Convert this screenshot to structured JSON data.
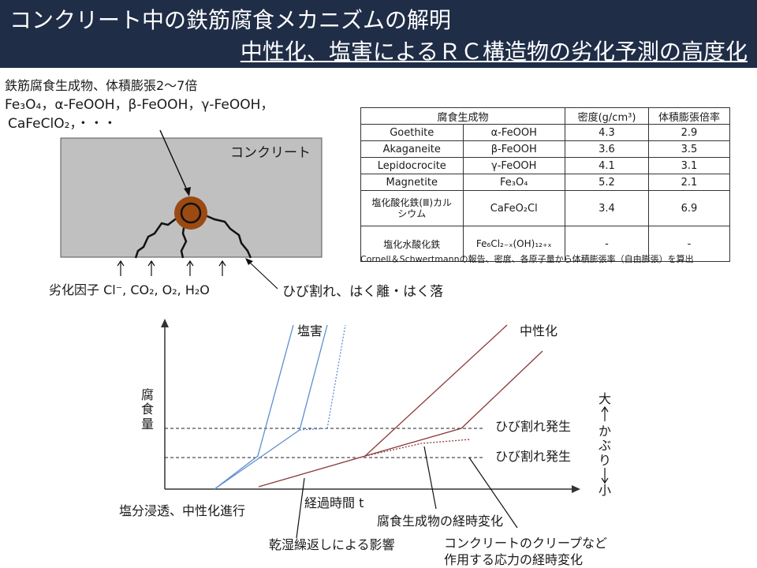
{
  "title": {
    "line1": "コンクリート中の鉄筋腐食メカニズムの解明",
    "line2": "中性化、塩害によるＲＣ構造物の劣化予測の高度化"
  },
  "diagram": {
    "products_line1": "鉄筋腐食生成物、体積膨張2～7倍",
    "products_line2": "Fe₃O₄，α-FeOOH，β-FeOOH，γ-FeOOH，",
    "products_line3": "CaFeClO₂，・・・",
    "concrete_label": "コンクリート",
    "factors_label": "劣化因子 Cl⁻, CO₂, O₂, H₂O",
    "crack_label": "ひび割れ、はく離・はく落"
  },
  "table": {
    "headers": [
      "腐食生成物",
      "密度(g/cm³)",
      "体積膨張倍率"
    ],
    "rows": [
      {
        "name": "Goethite",
        "formula": "α-FeOOH",
        "density": "4.3",
        "expansion": "2.9"
      },
      {
        "name": "Akaganeite",
        "formula": "β-FeOOH",
        "density": "3.6",
        "expansion": "3.5"
      },
      {
        "name": "Lepidocrocite",
        "formula": "γ-FeOOH",
        "density": "4.1",
        "expansion": "3.1"
      },
      {
        "name": "Magnetite",
        "formula": "Fe₃O₄",
        "density": "5.2",
        "expansion": "2.1"
      },
      {
        "name": "塩化酸化鉄(Ⅲ)カルシウム",
        "formula": "CaFeO₂Cl",
        "density": "3.4",
        "expansion": "6.9"
      },
      {
        "name": "塩化水酸化鉄",
        "formula": "Fe₆Cl₂₋ₓ(OH)₁₂₊ₓ",
        "density": "-",
        "expansion": "-"
      }
    ],
    "note": "Cornell＆Schwertmannの報告、密度、各原子量から体積膨張率（自由膨張）を算出"
  },
  "graph": {
    "y_label": "腐食量",
    "x_label": "経過時間 t",
    "salt_label": "塩害",
    "carbonation_label": "中性化",
    "crack_upper": "ひび割れ発生",
    "crack_lower": "ひび割れ発生",
    "cover_large": "大",
    "cover_text": "かぶり",
    "cover_small": "小",
    "initiation_label": "塩分浸透、中性化進行",
    "product_change": "腐食生成物の経時変化",
    "wetdry_label": "乾湿繰返しによる影響",
    "creep_line1": "コンクリートのクリープなど",
    "creep_line2": "作用する応力の経時変化"
  },
  "colors": {
    "title_bg": "#1f2d47",
    "salt_line": "#5b8fcf",
    "carb_line": "#8b3a3a",
    "rust": "#9b4a12"
  }
}
